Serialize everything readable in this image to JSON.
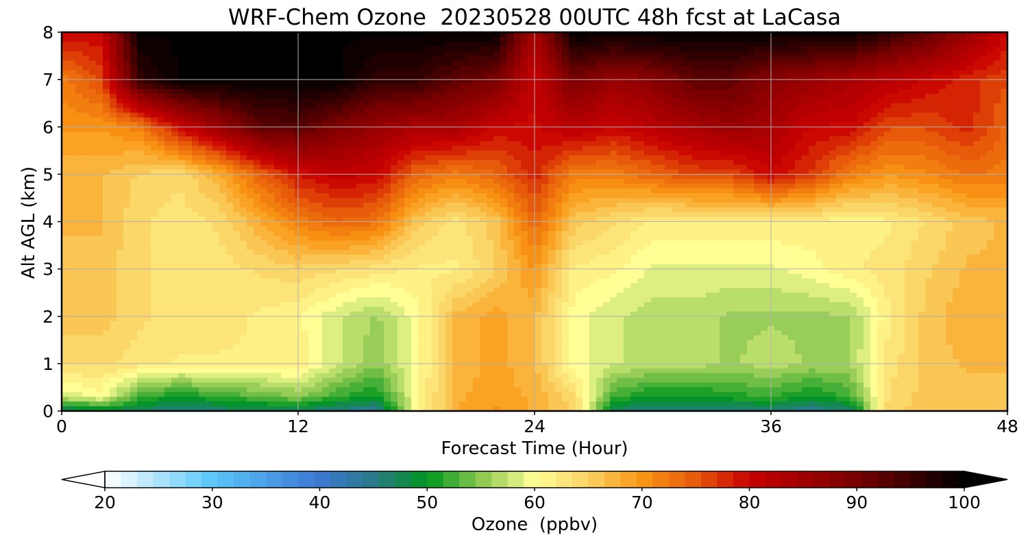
{
  "chart_data": {
    "type": "heatmap",
    "title": "WRF-Chem Ozone  20230528 00UTC 48h fcst at LaCasa",
    "xlabel": "Forecast Time (Hour)",
    "ylabel": "Alt AGL (km)",
    "xlim": [
      0,
      48
    ],
    "ylim": [
      0,
      8
    ],
    "xticks": [
      "0",
      "12",
      "24",
      "36",
      "48"
    ],
    "yticks": [
      "0",
      "1",
      "2",
      "3",
      "4",
      "5",
      "6",
      "7",
      "8"
    ],
    "grid": true,
    "colorbar": {
      "label": "Ozone  (ppbv)",
      "ticks": [
        "20",
        "30",
        "40",
        "50",
        "60",
        "70",
        "80",
        "90",
        "100"
      ],
      "range": [
        20,
        100
      ],
      "extend": "both",
      "orientation": "horizontal",
      "stops": [
        {
          "v": 20,
          "c": "#ffffff"
        },
        {
          "v": 30,
          "c": "#5ac8fa"
        },
        {
          "v": 40,
          "c": "#3c78d2"
        },
        {
          "v": 45,
          "c": "#2a7a8a"
        },
        {
          "v": 50,
          "c": "#00961e"
        },
        {
          "v": 55,
          "c": "#8cc850"
        },
        {
          "v": 60,
          "c": "#ffff96"
        },
        {
          "v": 65,
          "c": "#fad264"
        },
        {
          "v": 70,
          "c": "#fa9614"
        },
        {
          "v": 75,
          "c": "#e65a0a"
        },
        {
          "v": 80,
          "c": "#c80000"
        },
        {
          "v": 90,
          "c": "#780000"
        },
        {
          "v": 100,
          "c": "#000000"
        }
      ]
    },
    "times": [
      0,
      2,
      4,
      6,
      8,
      10,
      12,
      14,
      16,
      18,
      20,
      22,
      24,
      26,
      28,
      30,
      32,
      34,
      36,
      38,
      40,
      42,
      44,
      46,
      48
    ],
    "altitudes_km": [
      0,
      0.3,
      1,
      2,
      3,
      4,
      5,
      6,
      7,
      8
    ],
    "values": [
      [
        46,
        48,
        47,
        45,
        46,
        47,
        47,
        45,
        44,
        60,
        68,
        70,
        68,
        65,
        47,
        45,
        46,
        46,
        46,
        44,
        46,
        65,
        66,
        66,
        66
      ],
      [
        58,
        60,
        52,
        50,
        52,
        53,
        55,
        52,
        50,
        60,
        68,
        69,
        68,
        64,
        52,
        50,
        50,
        51,
        52,
        50,
        52,
        64,
        66,
        66,
        66
      ],
      [
        64,
        64,
        63,
        62,
        62,
        62,
        62,
        58,
        55,
        60,
        67,
        69,
        67,
        60,
        58,
        57,
        57,
        56,
        57,
        56,
        56,
        63,
        66,
        67,
        67
      ],
      [
        66,
        66,
        64,
        63,
        63,
        62,
        61,
        58,
        56,
        60,
        67,
        69,
        67,
        60,
        58,
        57,
        57,
        56,
        56,
        56,
        56,
        62,
        66,
        68,
        67
      ],
      [
        66,
        66,
        64,
        63,
        63,
        64,
        65,
        64,
        63,
        62,
        62,
        65,
        70,
        62,
        61,
        59,
        59,
        59,
        59,
        60,
        62,
        63,
        65,
        67,
        67
      ],
      [
        67,
        67,
        64,
        63,
        64,
        68,
        72,
        74,
        73,
        66,
        63,
        66,
        74,
        66,
        64,
        62,
        62,
        62,
        62,
        62,
        61,
        62,
        64,
        66,
        67
      ],
      [
        67,
        67,
        65,
        64,
        68,
        74,
        79,
        81,
        80,
        74,
        72,
        74,
        78,
        72,
        72,
        74,
        76,
        76,
        80,
        77,
        72,
        70,
        71,
        73,
        72
      ],
      [
        70,
        70,
        72,
        80,
        86,
        92,
        93,
        89,
        86,
        84,
        84,
        80,
        80,
        82,
        80,
        82,
        84,
        86,
        84,
        80,
        80,
        76,
        76,
        78,
        74
      ],
      [
        72,
        76,
        96,
        100,
        100,
        100,
        100,
        100,
        96,
        96,
        92,
        90,
        80,
        90,
        86,
        88,
        92,
        92,
        88,
        86,
        84,
        82,
        80,
        78,
        76
      ],
      [
        80,
        80,
        100,
        100,
        100,
        100,
        100,
        100,
        100,
        100,
        100,
        100,
        84,
        100,
        100,
        100,
        100,
        100,
        100,
        100,
        100,
        96,
        92,
        86,
        80
      ]
    ]
  }
}
